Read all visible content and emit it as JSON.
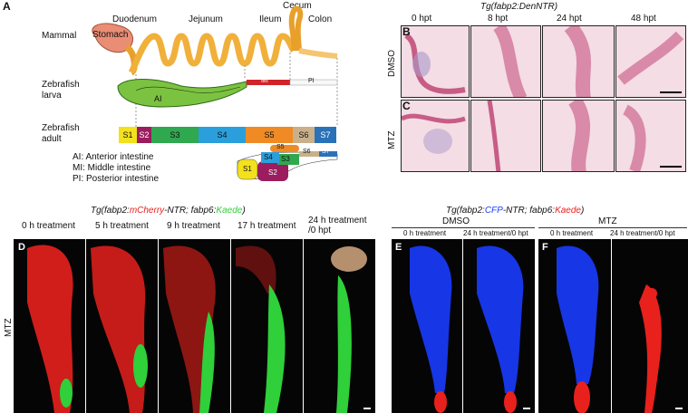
{
  "panels": {
    "A": "A",
    "B": "B",
    "C": "C",
    "D": "D",
    "E": "E",
    "F": "F"
  },
  "panelA": {
    "mammal_label": "Mammal",
    "stomach": "Stomach",
    "regions": {
      "duodenum": "Duodenum",
      "jejunum": "Jejunum",
      "ileum": "Ileum",
      "cecum": "Cecum",
      "colon": "Colon"
    },
    "larva_label": "Zebrafish\nlarva",
    "larva_regions": {
      "ai": "AI",
      "mi": "MI",
      "pi": "PI"
    },
    "adult_label": "Zebrafish\nadult",
    "segments": [
      {
        "name": "S1",
        "color": "#f2e11c"
      },
      {
        "name": "S2",
        "color": "#9b1d5e"
      },
      {
        "name": "S3",
        "color": "#2fa84f"
      },
      {
        "name": "S4",
        "color": "#2b9fdc"
      },
      {
        "name": "S5",
        "color": "#f08a24"
      },
      {
        "name": "S6",
        "color": "#c9b08a"
      },
      {
        "name": "S7",
        "color": "#2a72b8"
      }
    ],
    "legend": [
      "AI: Anterior intestine",
      "MI: Middle intestine",
      "PI: Posterior intestine"
    ]
  },
  "panelBC": {
    "title": "Tg(fabp2:DenNTR)",
    "timepoints": [
      "0 hpt",
      "8 hpt",
      "24 hpt",
      "48 hpt"
    ],
    "row_B": "DMSO",
    "row_C": "MTZ"
  },
  "panelD": {
    "title_prefix": "Tg(fabp2:",
    "title_red": "mCherry",
    "title_mid": "-NTR; fabp6:",
    "title_green": "Kaede",
    "title_suffix": ")",
    "timepoints": [
      "0 h treatment",
      "5 h treatment",
      "9 h treatment",
      "17 h treatment",
      "24 h treatment\n/0 hpt"
    ],
    "row_label": "MTZ"
  },
  "panelEF": {
    "title_prefix": "Tg(fabp2:",
    "title_blue": "CFP",
    "title_mid": "-NTR; fabp6:",
    "title_red": "Kaede",
    "title_suffix": ")",
    "E_condition": "DMSO",
    "F_condition": "MTZ",
    "timepoints": [
      "0 h treatment",
      "24 h treatment/0 hpt"
    ]
  },
  "colors": {
    "red": "#e8211d",
    "green": "#2fd03a",
    "blue": "#1a3cff",
    "histo": "#f4dde4",
    "histo_dark": "#d98aa8"
  }
}
